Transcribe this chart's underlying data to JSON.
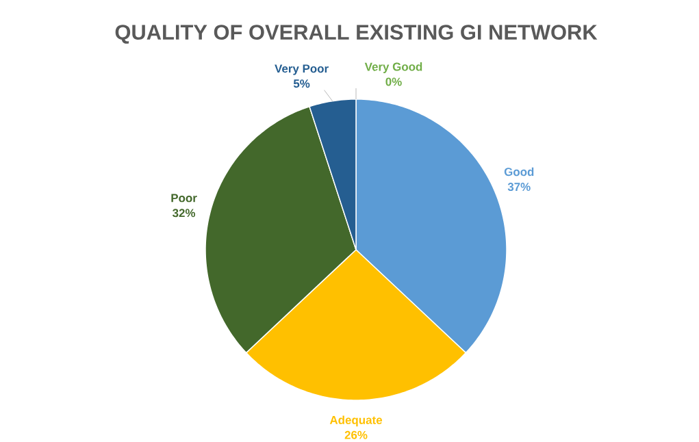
{
  "chart_data": {
    "type": "pie",
    "title": "QUALITY OF OVERALL EXISTING GI NETWORK",
    "categories": [
      "Very Good",
      "Good",
      "Adequate",
      "Poor",
      "Very Poor"
    ],
    "values": [
      0,
      37,
      26,
      32,
      5
    ],
    "colors": [
      "#70ad47",
      "#5b9bd5",
      "#ffc000",
      "#43682b",
      "#255e91"
    ],
    "value_labels": [
      "0%",
      "37%",
      "26%",
      "32%",
      "5%"
    ]
  }
}
